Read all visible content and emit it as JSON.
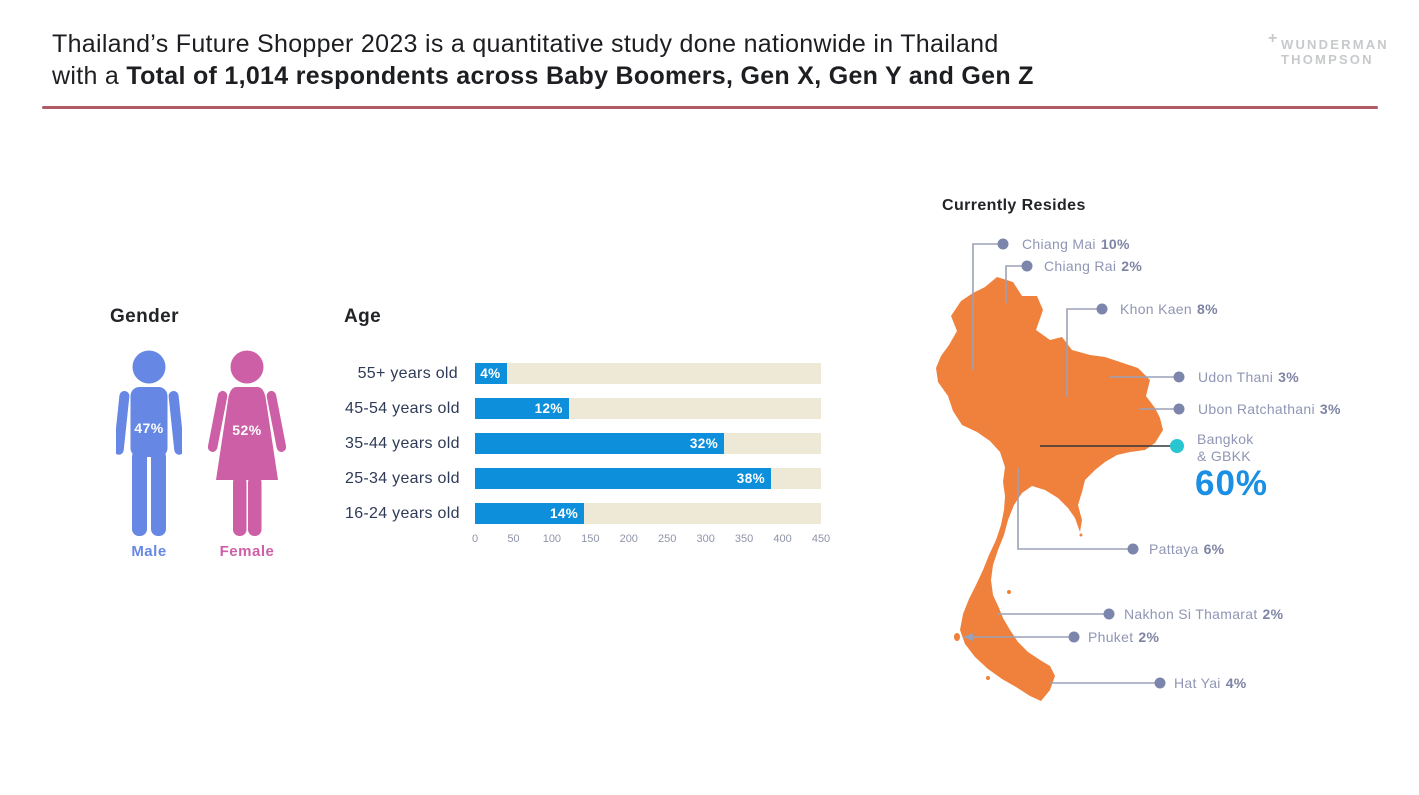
{
  "header": {
    "title_line1": "Thailand’s Future Shopper 2023 is a quantitative study done nationwide in Thailand",
    "title_line2_prefix": "with a ",
    "title_line2_bold": "Total of 1,014 respondents across Baby Boomers, Gen X, Gen Y and Gen Z",
    "logo": {
      "plus": "+",
      "line1": "WUNDERMAN",
      "line2": "THOMPSON"
    },
    "divider_color": "#b05b66"
  },
  "gender": {
    "heading": "Gender",
    "male_label": "Male",
    "male_value": "47%",
    "male_color": "#6687E3",
    "female_label": "Female",
    "female_value": "52%",
    "female_color": "#CD5FA6"
  },
  "age": {
    "heading": "Age",
    "rows": [
      {
        "label": "55+ years old",
        "pct": "4%",
        "count": 41
      },
      {
        "label": "45-54 years old",
        "pct": "12%",
        "count": 122
      },
      {
        "label": "35-44 years old",
        "pct": "32%",
        "count": 324
      },
      {
        "label": "25-34 years old",
        "pct": "38%",
        "count": 385
      },
      {
        "label": "16-24 years old",
        "pct": "14%",
        "count": 142
      }
    ],
    "axis": {
      "min": 0,
      "max": 450,
      "ticks": [
        0,
        50,
        100,
        150,
        200,
        250,
        300,
        350,
        400,
        450
      ]
    },
    "bar_color": "#0D8FDB",
    "track_color": "#EEE9D6"
  },
  "resides": {
    "heading": "Currently Resides",
    "map_color": "#F0813C",
    "dot_color": "#7C86AD",
    "highlight_dot_color": "#29C5D1",
    "locations": [
      {
        "name": "Chiang Mai",
        "pct": "10%"
      },
      {
        "name": "Chiang Rai",
        "pct": "2%"
      },
      {
        "name": "Khon Kaen",
        "pct": "8%"
      },
      {
        "name": "Udon Thani",
        "pct": "3%"
      },
      {
        "name": "Ubon Ratchathani",
        "pct": "3%"
      },
      {
        "name_line1": "Bangkok",
        "name_line2": "& GBKK",
        "pct": "60%",
        "highlight_color": "#1A8FE3"
      },
      {
        "name": "Pattaya",
        "pct": "6%"
      },
      {
        "name": "Nakhon Si Thamarat",
        "pct": "2%"
      },
      {
        "name": "Phuket",
        "pct": "2%"
      },
      {
        "name": "Hat Yai",
        "pct": "4%"
      }
    ]
  },
  "chart_data": [
    {
      "type": "pictogram",
      "title": "Gender",
      "categories": [
        "Male",
        "Female"
      ],
      "values": [
        47,
        52
      ],
      "unit": "%"
    },
    {
      "type": "bar",
      "orientation": "horizontal",
      "title": "Age",
      "categories": [
        "55+ years old",
        "45-54 years old",
        "35-44 years old",
        "25-34 years old",
        "16-24 years old"
      ],
      "values_pct": [
        4,
        12,
        32,
        38,
        14
      ],
      "values_respondents": [
        41,
        122,
        324,
        385,
        142
      ],
      "xlabel": "",
      "ylabel": "",
      "xlim": [
        0,
        450
      ],
      "xticks": [
        0,
        50,
        100,
        150,
        200,
        250,
        300,
        350,
        400,
        450
      ],
      "bar_labels": [
        "4%",
        "12%",
        "32%",
        "38%",
        "14%"
      ]
    },
    {
      "type": "map",
      "title": "Currently Resides",
      "region": "Thailand",
      "locations": [
        {
          "name": "Chiang Mai",
          "value": 10
        },
        {
          "name": "Chiang Rai",
          "value": 2
        },
        {
          "name": "Khon Kaen",
          "value": 8
        },
        {
          "name": "Udon Thani",
          "value": 3
        },
        {
          "name": "Ubon Ratchathani",
          "value": 3
        },
        {
          "name": "Bangkok & GBKK",
          "value": 60
        },
        {
          "name": "Pattaya",
          "value": 6
        },
        {
          "name": "Nakhon Si Thamarat",
          "value": 2
        },
        {
          "name": "Phuket",
          "value": 2
        },
        {
          "name": "Hat Yai",
          "value": 4
        }
      ],
      "unit": "%"
    }
  ]
}
